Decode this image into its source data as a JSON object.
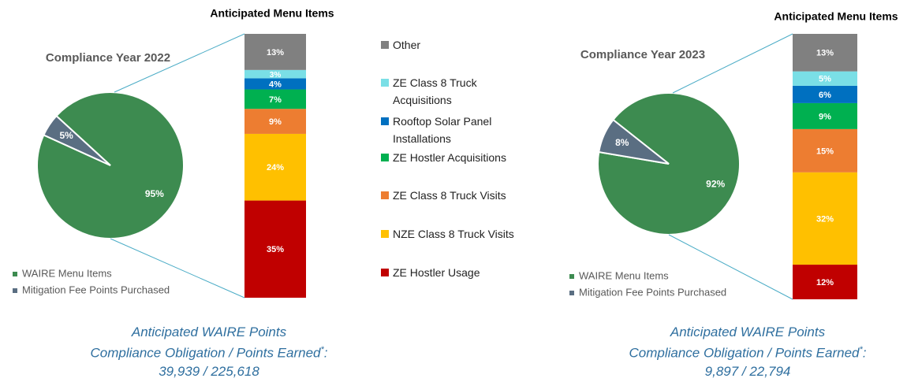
{
  "chart_data": [
    {
      "type": "pie",
      "title": "Compliance Year 2022",
      "categories": [
        "WAIRE Menu Items",
        "Mitigation Fee Points Purchased"
      ],
      "values": [
        95,
        5
      ],
      "value_labels": [
        "95%",
        "5%"
      ],
      "colors": [
        "#3d8b50",
        "#5a6e82"
      ]
    },
    {
      "type": "pie",
      "title": "Compliance Year 2023",
      "categories": [
        "WAIRE Menu Items",
        "Mitigation Fee Points Purchased"
      ],
      "values": [
        92,
        8
      ],
      "value_labels": [
        "92%",
        "8%"
      ],
      "colors": [
        "#3d8b50",
        "#5a6e82"
      ]
    },
    {
      "type": "stacked_bar",
      "titles": [
        "Anticipated Menu Items",
        "Anticipated Menu Items"
      ],
      "categories": [
        null,
        null
      ],
      "series": [
        {
          "name": "ZE Hostler Usage",
          "color": "#c00000",
          "values": [
            35,
            12
          ],
          "value_labels": [
            "35%",
            "12%"
          ]
        },
        {
          "name": "NZE Class 8 Truck Visits",
          "color": "#ffc000",
          "values": [
            24,
            32
          ],
          "value_labels": [
            "24%",
            "32%"
          ]
        },
        {
          "name": "ZE Class 8 Truck Visits",
          "color": "#ed7d31",
          "values": [
            9,
            15
          ],
          "value_labels": [
            "9%",
            "15%"
          ]
        },
        {
          "name": "ZE Hostler Acquisitions",
          "color": "#00b050",
          "values": [
            7,
            9
          ],
          "value_labels": [
            "7%",
            "9%"
          ]
        },
        {
          "name": "Rooftop Solar Panel Installations",
          "color": "#0070c0",
          "values": [
            4,
            6
          ],
          "value_labels": [
            "4%",
            "6%"
          ]
        },
        {
          "name": "ZE Class 8 Truck Acquisitions",
          "color": "#7adfe6",
          "values": [
            3,
            5
          ],
          "value_labels": [
            "3%",
            "5%"
          ]
        },
        {
          "name": "Other",
          "color": "#808080",
          "values": [
            13,
            13
          ],
          "value_labels": [
            "13%",
            "13%"
          ]
        }
      ]
    }
  ],
  "captions": [
    {
      "heading": "Anticipated WAIRE Points",
      "label": "Compliance Obligation / Points Earned",
      "footnote_mark": "*",
      "suffix": ":",
      "figures": "39,939 / 225,618"
    },
    {
      "heading": "Anticipated WAIRE Points",
      "label": "Compliance Obligation / Points Earned",
      "footnote_mark": "*",
      "suffix": ":",
      "figures": "9,897 / 22,794"
    }
  ]
}
